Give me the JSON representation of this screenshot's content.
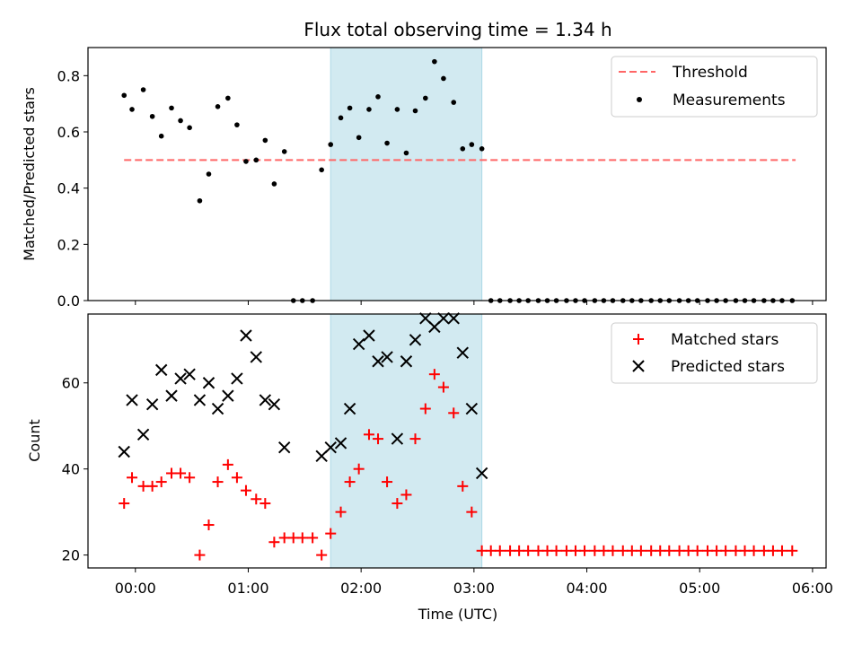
{
  "chart_data": {
    "type": "scatter",
    "title": "Flux total observing time = 1.34 h",
    "xlabel": "Time (UTC)",
    "xticks": [
      "00:00",
      "01:00",
      "02:00",
      "03:00",
      "04:00",
      "05:00",
      "06:00"
    ],
    "xlim": [
      -0.42,
      6.12
    ],
    "x_unit": "hours UTC",
    "highlight_interval": {
      "start": 1.73,
      "end": 3.07,
      "color": "#add8e6"
    },
    "panels": [
      {
        "id": "ratio",
        "ylabel": "Matched/Predicted stars",
        "ylim": [
          0,
          0.9
        ],
        "yticks": [
          "0.0",
          "0.2",
          "0.4",
          "0.6",
          "0.8"
        ],
        "legend": "top-right",
        "threshold": {
          "name": "Threshold",
          "value": 0.5,
          "x_range": [
            -0.1,
            5.85
          ],
          "color": "#ff6666"
        },
        "series": [
          {
            "name": "Measurements",
            "marker": "dot",
            "color": "#000000",
            "x": [
              -0.1,
              -0.03,
              0.07,
              0.15,
              0.23,
              0.32,
              0.4,
              0.48,
              0.57,
              0.65,
              0.73,
              0.82,
              0.9,
              0.98,
              1.07,
              1.15,
              1.23,
              1.32,
              1.4,
              1.48,
              1.57,
              1.65,
              1.73,
              1.82,
              1.9,
              1.98,
              2.07,
              2.15,
              2.23,
              2.32,
              2.4,
              2.48,
              2.57,
              2.65,
              2.73,
              2.82,
              2.9,
              2.98,
              3.07,
              3.15,
              3.23,
              3.32,
              3.4,
              3.48,
              3.57,
              3.65,
              3.73,
              3.82,
              3.9,
              3.98,
              4.07,
              4.15,
              4.23,
              4.32,
              4.4,
              4.48,
              4.57,
              4.65,
              4.73,
              4.82,
              4.9,
              4.98,
              5.07,
              5.15,
              5.23,
              5.32,
              5.4,
              5.48,
              5.57,
              5.65,
              5.73,
              5.82
            ],
            "y": [
              0.73,
              0.68,
              0.75,
              0.655,
              0.585,
              0.685,
              0.64,
              0.615,
              0.355,
              0.45,
              0.69,
              0.72,
              0.625,
              0.495,
              0.5,
              0.57,
              0.415,
              0.53,
              0.0,
              0.0,
              0.0,
              0.465,
              0.555,
              0.65,
              0.685,
              0.58,
              0.68,
              0.725,
              0.56,
              0.68,
              0.525,
              0.675,
              0.72,
              0.85,
              0.79,
              0.705,
              0.54,
              0.555,
              0.54,
              0.0,
              0.0,
              0.0,
              0.0,
              0.0,
              0.0,
              0.0,
              0.0,
              0.0,
              0.0,
              0.0,
              0.0,
              0.0,
              0.0,
              0.0,
              0.0,
              0.0,
              0.0,
              0.0,
              0.0,
              0.0,
              0.0,
              0.0,
              0.0,
              0.0,
              0.0,
              0.0,
              0.0,
              0.0,
              0.0,
              0.0,
              0.0,
              0.0
            ]
          }
        ]
      },
      {
        "id": "count",
        "ylabel": "Count",
        "ylim": [
          17,
          76
        ],
        "yticks": [
          "20",
          "40",
          "60"
        ],
        "legend": "top-right",
        "series": [
          {
            "name": "Matched stars",
            "marker": "plus",
            "color": "#ff0000",
            "x": [
              -0.1,
              -0.03,
              0.07,
              0.15,
              0.23,
              0.32,
              0.4,
              0.48,
              0.57,
              0.65,
              0.73,
              0.82,
              0.9,
              0.98,
              1.07,
              1.15,
              1.23,
              1.32,
              1.4,
              1.48,
              1.57,
              1.65,
              1.73,
              1.82,
              1.9,
              1.98,
              2.07,
              2.15,
              2.23,
              2.32,
              2.4,
              2.48,
              2.57,
              2.65,
              2.73,
              2.82,
              2.9,
              2.98,
              3.07,
              3.15,
              3.23,
              3.32,
              3.4,
              3.48,
              3.57,
              3.65,
              3.73,
              3.82,
              3.9,
              3.98,
              4.07,
              4.15,
              4.23,
              4.32,
              4.4,
              4.48,
              4.57,
              4.65,
              4.73,
              4.82,
              4.9,
              4.98,
              5.07,
              5.15,
              5.23,
              5.32,
              5.4,
              5.48,
              5.57,
              5.65,
              5.73,
              5.82
            ],
            "y": [
              32,
              38,
              36,
              36,
              37,
              39,
              39,
              38,
              20,
              27,
              37,
              41,
              38,
              35,
              33,
              32,
              23,
              24,
              24,
              24,
              24,
              20,
              25,
              30,
              37,
              40,
              48,
              47,
              37,
              32,
              34,
              47,
              54,
              62,
              59,
              53,
              36,
              30,
              21,
              21,
              21,
              21,
              21,
              21,
              21,
              21,
              21,
              21,
              21,
              21,
              21,
              21,
              21,
              21,
              21,
              21,
              21,
              21,
              21,
              21,
              21,
              21,
              21,
              21,
              21,
              21,
              21,
              21,
              21,
              21,
              21,
              21
            ]
          },
          {
            "name": "Predicted stars",
            "marker": "x",
            "color": "#000000",
            "x": [
              -0.1,
              -0.03,
              0.07,
              0.15,
              0.23,
              0.32,
              0.4,
              0.48,
              0.57,
              0.65,
              0.73,
              0.82,
              0.9,
              0.98,
              1.07,
              1.15,
              1.23,
              1.32,
              1.65,
              1.73,
              1.82,
              1.9,
              1.98,
              2.07,
              2.15,
              2.23,
              2.32,
              2.4,
              2.48,
              2.57,
              2.65,
              2.73,
              2.82,
              2.9,
              2.98,
              3.07
            ],
            "y": [
              44,
              56,
              48,
              55,
              63,
              57,
              61,
              62,
              56,
              60,
              54,
              57,
              61,
              71,
              66,
              56,
              55,
              45,
              43,
              45,
              46,
              54,
              69,
              71,
              65,
              66,
              47,
              65,
              70,
              75,
              73,
              75,
              75,
              67,
              54,
              39
            ]
          }
        ]
      }
    ]
  }
}
